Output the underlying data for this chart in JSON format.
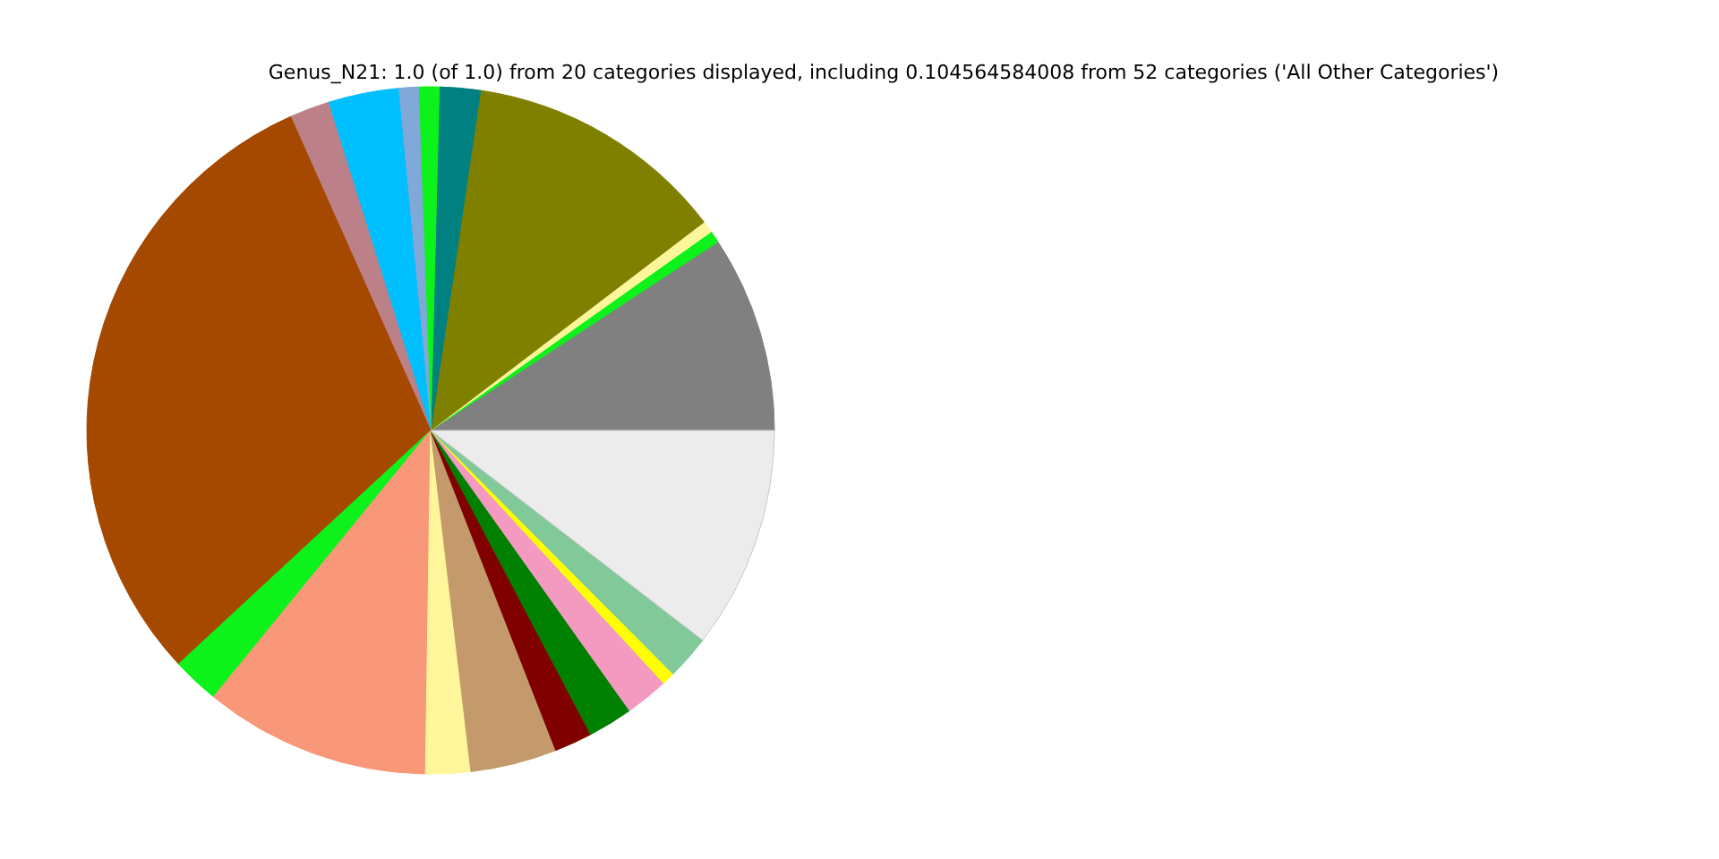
{
  "chart_data": {
    "type": "pie",
    "title": "Genus_N21: 1.0 (of 1.0) from 20 categories displayed, including 0.104564584008 from 52 categories ('All Other Categories')",
    "categories": [
      null,
      null,
      null,
      null,
      null,
      null,
      null,
      null,
      null,
      null,
      null,
      null,
      null,
      null,
      null,
      null,
      null,
      null,
      null,
      null
    ],
    "values": [
      9.25,
      0.56,
      0.56,
      12.31,
      1.92,
      0.97,
      0.94,
      3.31,
      1.86,
      30.22,
      2.22,
      10.64,
      2.11,
      4.06,
      1.78,
      2.11,
      2.03,
      0.61,
      2.08,
      10.46
    ],
    "colors": [
      "#808080",
      "#0cf21a",
      "#fff59a",
      "#808000",
      "#008080",
      "#0cf21a",
      "#80a8d8",
      "#00bfff",
      "#bc8088",
      "#a54800",
      "#0cf21a",
      "#f99779",
      "#fff59a",
      "#c49a6c",
      "#800000",
      "#008000",
      "#f49ac1",
      "#ffff00",
      "#82c99a",
      "#ececec"
    ]
  }
}
